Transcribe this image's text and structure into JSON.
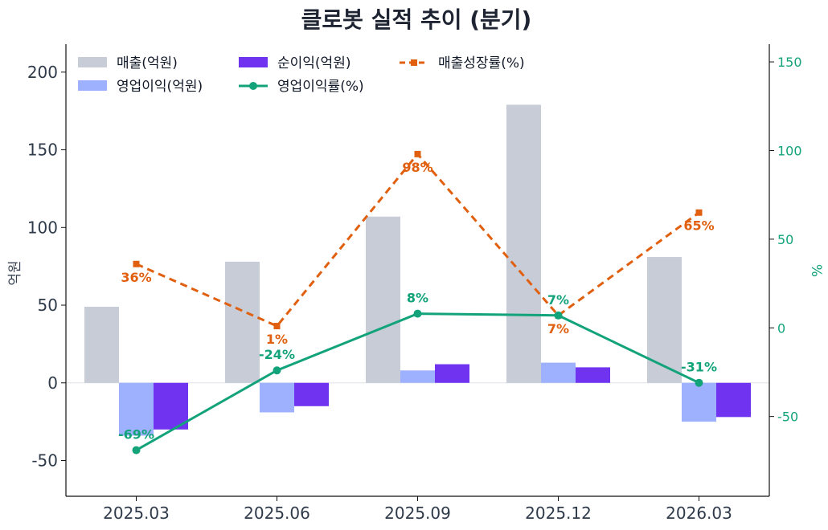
{
  "chart_data": {
    "type": "bar",
    "title": "클로봇 실적 추이 (분기)",
    "categories": [
      "2025.03",
      "2025.06",
      "2025.09",
      "2025.12",
      "2026.03"
    ],
    "ylabel": "억원",
    "ylabel_right": "%",
    "ylim": [
      -73,
      218
    ],
    "ylim_right": [
      -95,
      160
    ],
    "yticks": [
      "200",
      "150",
      "100",
      "50",
      "0",
      "-50"
    ],
    "yticks_right": [
      "150",
      "100",
      "50",
      "0",
      "-50"
    ],
    "legend_position": "top-left",
    "grid": false,
    "bar_series": [
      {
        "name": "매출(억원)",
        "color": "#c7ccd6",
        "values": [
          49,
          78,
          107,
          179,
          81
        ]
      },
      {
        "name": "영업이익(억원)",
        "color": "#9db1ff",
        "values": [
          -34,
          -19,
          8,
          13,
          -25
        ]
      },
      {
        "name": "순이익(억원)",
        "color": "#7033f0",
        "values": [
          -30,
          -15,
          12,
          10,
          -22
        ]
      }
    ],
    "line_series": [
      {
        "name": "영업이익률(%)",
        "color": "#12a37a",
        "axis": "right",
        "style": "solid",
        "values": [
          -69,
          -24,
          8,
          7,
          -31
        ],
        "labels": [
          "-69%",
          "-24%",
          "8%",
          "7%",
          "-31%"
        ]
      },
      {
        "name": "매출성장률(%)",
        "color": "#e0600f",
        "axis": "right",
        "style": "dashed",
        "values": [
          36,
          1,
          98,
          7,
          65
        ],
        "labels": [
          "36%",
          "1%",
          "98%",
          "7%",
          "65%"
        ]
      }
    ]
  }
}
